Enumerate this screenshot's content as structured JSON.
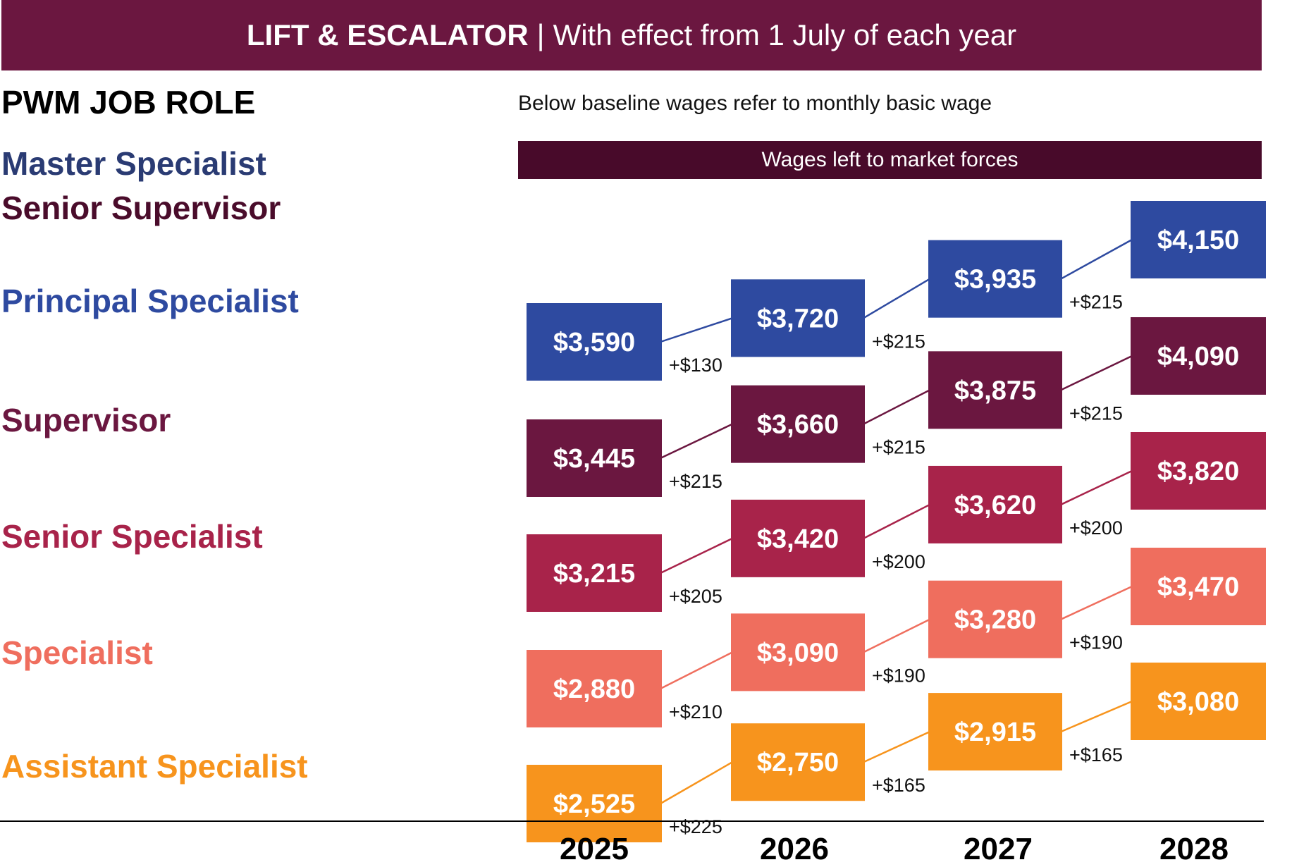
{
  "header": {
    "title_bold": "LIFT & ESCALATOR",
    "separator": "|",
    "title_rest": "With effect from 1 July of each year",
    "bg_color": "#6b1740"
  },
  "role_heading": "PWM JOB ROLE",
  "note": "Below baseline wages refer to monthly basic wage",
  "market_bar": "Wages left to market forces",
  "roles": [
    {
      "label": "Master Specialist",
      "color": "#2a3b73"
    },
    {
      "label": "Senior Supervisor",
      "color": "#4a0c2b"
    },
    {
      "label": "Principal Specialist",
      "color": "#2e4aa0"
    },
    {
      "label": "Supervisor",
      "color": "#6b1740"
    },
    {
      "label": "Senior Specialist",
      "color": "#a8234a"
    },
    {
      "label": "Specialist",
      "color": "#ef6e5e"
    },
    {
      "label": "Assistant Specialist",
      "color": "#f7941d"
    }
  ],
  "chart_data": {
    "type": "line",
    "categories": [
      "2025",
      "2026",
      "2027",
      "2028"
    ],
    "series": [
      {
        "name": "Principal Specialist",
        "color": "#2e4aa0",
        "values": [
          3590,
          3720,
          3935,
          4150
        ],
        "labels": [
          "$3,590",
          "$3,720",
          "$3,935",
          "$4,150"
        ],
        "increments": [
          "+$130",
          "+$215",
          "+$215"
        ]
      },
      {
        "name": "Supervisor",
        "color": "#6b1740",
        "values": [
          3445,
          3660,
          3875,
          4090
        ],
        "labels": [
          "$3,445",
          "$3,660",
          "$3,875",
          "$4,090"
        ],
        "increments": [
          "+$215",
          "+$215",
          "+$215"
        ]
      },
      {
        "name": "Senior Specialist",
        "color": "#a8234a",
        "values": [
          3215,
          3420,
          3620,
          3820
        ],
        "labels": [
          "$3,215",
          "$3,420",
          "$3,620",
          "$3,820"
        ],
        "increments": [
          "+$205",
          "+$200",
          "+$200"
        ]
      },
      {
        "name": "Specialist",
        "color": "#ef6e5e",
        "values": [
          2880,
          3090,
          3280,
          3470
        ],
        "labels": [
          "$2,880",
          "$3,090",
          "$3,280",
          "$3,470"
        ],
        "increments": [
          "+$210",
          "+$190",
          "+$190"
        ]
      },
      {
        "name": "Assistant Specialist",
        "color": "#f7941d",
        "values": [
          2525,
          2750,
          2915,
          3080
        ],
        "labels": [
          "$2,525",
          "$2,750",
          "$2,915",
          "$3,080"
        ],
        "increments": [
          "+$225",
          "+$165",
          "+$165"
        ]
      }
    ]
  }
}
